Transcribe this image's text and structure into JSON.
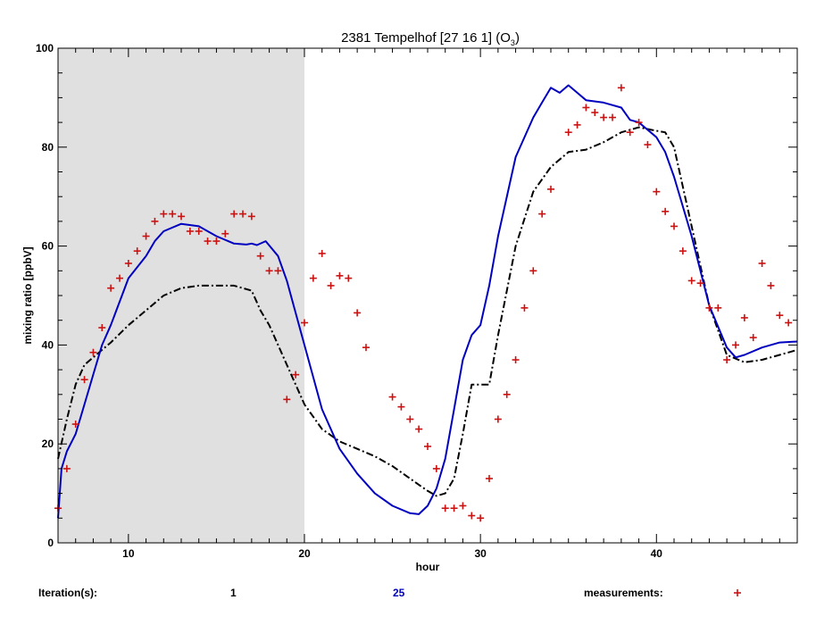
{
  "chart_data": {
    "type": "line",
    "title": "2381 Tempelhof  [27 16 1]  (O",
    "title_subscript": "3",
    "title_suffix": ")",
    "xlabel": "hour",
    "ylabel": "mixing ratio [ppbV]",
    "xlim": [
      6,
      48
    ],
    "ylim": [
      0,
      100
    ],
    "x_ticks": [
      10,
      20,
      30,
      40
    ],
    "y_ticks": [
      0,
      20,
      40,
      60,
      80,
      100
    ],
    "shaded_region": {
      "x_start": 6,
      "x_end": 20,
      "color": "#e0e0e0"
    },
    "legend": {
      "label": "Iteration(s):",
      "items": [
        {
          "text": "1",
          "color": "#000000"
        },
        {
          "text": "25",
          "color": "#0000c0"
        },
        {
          "text": "measurements:",
          "color": "#000000",
          "marker": "+",
          "marker_color": "#cc1111"
        }
      ]
    },
    "series": [
      {
        "color": "#000000",
        "dash": "dashdot",
        "x": [
          6,
          6.5,
          7,
          7.5,
          8,
          8.5,
          9,
          10,
          11,
          12,
          13,
          14,
          15,
          16,
          17,
          17.5,
          18,
          19,
          20,
          21,
          22,
          23,
          24,
          25,
          26,
          27,
          27.5,
          28,
          28.5,
          29,
          29.5,
          30,
          30.5,
          31,
          32,
          33,
          34,
          35,
          36,
          37,
          38,
          39,
          39.7,
          40.5,
          41,
          42,
          43,
          44,
          45,
          46,
          47,
          48
        ],
        "values": [
          17,
          25,
          32,
          36,
          37.5,
          39,
          40.5,
          44,
          47,
          50,
          51.5,
          52,
          52,
          52,
          51,
          47,
          44,
          36,
          28,
          23,
          20.5,
          19,
          17.5,
          15.5,
          13,
          10.5,
          9.5,
          10,
          13,
          22,
          32,
          32,
          32,
          42,
          60,
          71,
          76,
          79,
          79.5,
          81,
          83,
          84,
          83.5,
          83,
          80,
          64,
          48,
          38,
          36.5,
          37,
          38,
          39
        ]
      },
      {
        "color": "#0000c0",
        "dash": "solid",
        "x": [
          6,
          6.2,
          6.5,
          7,
          7.5,
          8,
          8.5,
          9,
          10,
          11,
          11.5,
          12,
          13,
          14,
          15,
          16,
          16.7,
          17,
          17.3,
          17.8,
          18.5,
          19,
          20,
          21,
          22,
          23,
          24,
          25,
          26,
          26.5,
          27,
          27.5,
          28,
          28.5,
          29,
          29.5,
          30,
          30.5,
          31,
          32,
          33,
          33.5,
          34,
          34.5,
          35,
          35.5,
          36,
          37,
          38,
          38.5,
          39,
          40,
          40.5,
          41,
          42,
          43,
          44,
          44.5,
          45,
          46,
          47,
          48
        ],
        "values": [
          5,
          15,
          18.5,
          22,
          28,
          34,
          40,
          44,
          53.5,
          58,
          61,
          63,
          64.5,
          64,
          62,
          60.5,
          60.3,
          60.5,
          60.2,
          61,
          58,
          53,
          40,
          27,
          19,
          14,
          10,
          7.5,
          6,
          5.8,
          7.5,
          11,
          17,
          27,
          37,
          42,
          44,
          52,
          62,
          78,
          86,
          89,
          92,
          91,
          92.5,
          91,
          89.5,
          89,
          88,
          85.5,
          85,
          82,
          79,
          74,
          62,
          48,
          39.5,
          37.5,
          38,
          39.5,
          40.5,
          40.7
        ]
      }
    ],
    "measurements": {
      "color": "#cc1111",
      "x": [
        6,
        6.5,
        7,
        7.5,
        8,
        8.5,
        9,
        9.5,
        10,
        10.5,
        11,
        11.5,
        12,
        12.5,
        13,
        13.5,
        14,
        14.5,
        15,
        15.5,
        16,
        16.5,
        17,
        17.5,
        18,
        18.5,
        19,
        19.5,
        20,
        20.5,
        21,
        21.5,
        22,
        22.5,
        23,
        23.5,
        25,
        25.5,
        26,
        26.5,
        27,
        27.5,
        28,
        28.5,
        29,
        29.5,
        30,
        30.5,
        31,
        31.5,
        32,
        32.5,
        33,
        33.5,
        34,
        35,
        35.5,
        36,
        36.5,
        37,
        37.5,
        38,
        38.5,
        39,
        39.5,
        40,
        40.5,
        41,
        41.5,
        42,
        42.5,
        43,
        43.5,
        44,
        44.5,
        45,
        45.5,
        46,
        46.5,
        47,
        47.5
      ],
      "values": [
        7,
        15,
        24,
        33,
        38.5,
        43.5,
        51.5,
        53.5,
        56.5,
        59,
        62,
        65,
        66.5,
        66.5,
        66,
        63,
        63,
        61,
        61,
        62.5,
        66.5,
        66.5,
        66,
        58,
        55,
        55,
        29,
        34,
        44.5,
        53.5,
        58.5,
        52,
        54,
        53.5,
        46.5,
        39.5,
        29.5,
        27.5,
        25,
        23,
        19.5,
        15,
        7,
        7,
        7.5,
        5.5,
        5,
        13,
        25,
        30,
        37,
        47.5,
        55,
        66.5,
        71.5,
        83,
        84.5,
        88,
        87,
        86,
        86,
        92,
        83,
        85,
        80.5,
        71,
        67,
        64,
        59,
        53,
        52.5,
        47.5,
        47.5,
        37,
        40,
        45.5,
        41.5,
        56.5,
        52,
        46,
        44.5
      ]
    }
  }
}
